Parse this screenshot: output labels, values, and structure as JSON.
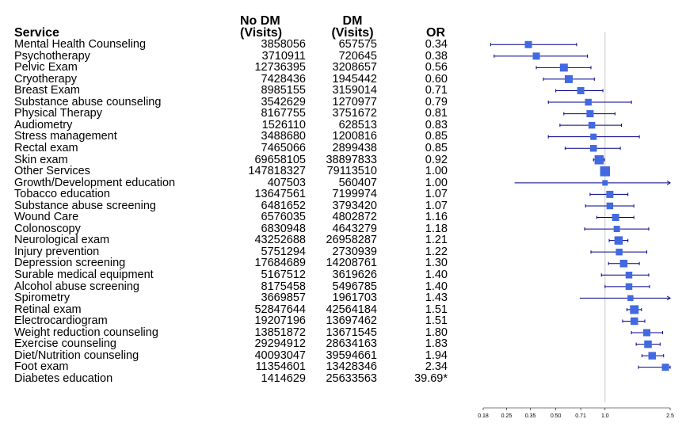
{
  "headers": {
    "service": "Service",
    "no_dm_line1": "No DM",
    "no_dm_line2": "(Visits)",
    "dm_line1": "DM",
    "dm_line2": "(Visits)",
    "or": "OR"
  },
  "colors": {
    "marker": "#4169E1",
    "ci_line": "#00008B",
    "ref_line": "#C8C8C8"
  },
  "chart_data": {
    "type": "forest",
    "x_scale": "log",
    "xlim": [
      0.18,
      2.5
    ],
    "x_ticks": [
      "0.18",
      "0.25",
      "0.35",
      "0.50",
      "0.71",
      "1.0",
      "2.5"
    ],
    "reference_value": 1.0,
    "rows": [
      {
        "service": "Mental Health Counseling",
        "no_dm": "3858056",
        "dm": "657575",
        "or_label": "0.34",
        "or": 0.34,
        "lo": 0.2,
        "hi": 0.67
      },
      {
        "service": "Psychotherapy",
        "no_dm": "3710911",
        "dm": "720645",
        "or_label": "0.38",
        "or": 0.38,
        "lo": 0.21,
        "hi": 0.78
      },
      {
        "service": "Pelvic Exam",
        "no_dm": "12736395",
        "dm": "3208657",
        "or_label": "0.56",
        "or": 0.56,
        "lo": 0.38,
        "hi": 0.82
      },
      {
        "service": "Cryotherapy",
        "no_dm": "7428436",
        "dm": "1945442",
        "or_label": "0.60",
        "or": 0.6,
        "lo": 0.42,
        "hi": 0.86
      },
      {
        "service": "Breast Exam",
        "no_dm": "8985155",
        "dm": "3159014",
        "or_label": "0.71",
        "or": 0.71,
        "lo": 0.5,
        "hi": 0.97
      },
      {
        "service": "Substance abuse counseling",
        "no_dm": "3542629",
        "dm": "1270977",
        "or_label": "0.79",
        "or": 0.79,
        "lo": 0.45,
        "hi": 1.45
      },
      {
        "service": "Physical Therapy",
        "no_dm": "8167755",
        "dm": "3751672",
        "or_label": "0.81",
        "or": 0.81,
        "lo": 0.56,
        "hi": 1.15
      },
      {
        "service": "Audiometry",
        "no_dm": "1526110",
        "dm": "628513",
        "or_label": "0.83",
        "or": 0.83,
        "lo": 0.53,
        "hi": 1.26
      },
      {
        "service": "Stress management",
        "no_dm": "3488680",
        "dm": "1200816",
        "or_label": "0.85",
        "or": 0.85,
        "lo": 0.45,
        "hi": 1.62
      },
      {
        "service": "Rectal exam",
        "no_dm": "7465066",
        "dm": "2899438",
        "or_label": "0.85",
        "or": 0.85,
        "lo": 0.57,
        "hi": 1.24
      },
      {
        "service": "Skin exam",
        "no_dm": "69658105",
        "dm": "38897833",
        "or_label": "0.92",
        "or": 0.92,
        "lo": 0.85,
        "hi": 0.99
      },
      {
        "service": "Other Services",
        "no_dm": "147818327",
        "dm": "79113510",
        "or_label": "1.00",
        "or": 1.0,
        "lo": 0.96,
        "hi": 1.05
      },
      {
        "service": "Growth/Development education",
        "no_dm": "407503",
        "dm": "560407",
        "or_label": "1.00",
        "or": 1.0,
        "lo": 0.28,
        "hi": 2.5,
        "arrow_right": true
      },
      {
        "service": "Tobacco education",
        "no_dm": "13647561",
        "dm": "7199974",
        "or_label": "1.07",
        "or": 1.07,
        "lo": 0.81,
        "hi": 1.38
      },
      {
        "service": "Substance abuse screening",
        "no_dm": "6481652",
        "dm": "3793420",
        "or_label": "1.07",
        "or": 1.07,
        "lo": 0.76,
        "hi": 1.5
      },
      {
        "service": "Wound Care",
        "no_dm": "6576035",
        "dm": "4802872",
        "or_label": "1.16",
        "or": 1.16,
        "lo": 0.89,
        "hi": 1.5
      },
      {
        "service": "Colonoscopy",
        "no_dm": "6830948",
        "dm": "4643279",
        "or_label": "1.18",
        "or": 1.18,
        "lo": 0.75,
        "hi": 1.85
      },
      {
        "service": "Neurological exam",
        "no_dm": "43252688",
        "dm": "26958287",
        "or_label": "1.21",
        "or": 1.21,
        "lo": 1.06,
        "hi": 1.38
      },
      {
        "service": "Injury prevention",
        "no_dm": "5751294",
        "dm": "2730939",
        "or_label": "1.22",
        "or": 1.22,
        "lo": 0.82,
        "hi": 1.8
      },
      {
        "service": "Depression screening",
        "no_dm": "17684689",
        "dm": "14208761",
        "or_label": "1.30",
        "or": 1.3,
        "lo": 1.05,
        "hi": 1.62
      },
      {
        "service": "Surable medical equipment",
        "no_dm": "5167512",
        "dm": "3619626",
        "or_label": "1.40",
        "or": 1.4,
        "lo": 0.95,
        "hi": 1.85
      },
      {
        "service": "Alcohol abuse screening",
        "no_dm": "8175458",
        "dm": "5496785",
        "or_label": "1.40",
        "or": 1.4,
        "lo": 1.0,
        "hi": 1.87
      },
      {
        "service": "Spirometry",
        "no_dm": "3669857",
        "dm": "1961703",
        "or_label": "1.43",
        "or": 1.43,
        "lo": 0.7,
        "hi": 2.5,
        "arrow_right": true
      },
      {
        "service": "Retinal exam",
        "no_dm": "52847644",
        "dm": "42564184",
        "or_label": "1.51",
        "or": 1.51,
        "lo": 1.36,
        "hi": 1.67
      },
      {
        "service": "Electrocardiogram",
        "no_dm": "19207196",
        "dm": "13697462",
        "or_label": "1.51",
        "or": 1.51,
        "lo": 1.28,
        "hi": 1.75
      },
      {
        "service": "Weight reduction counseling",
        "no_dm": "13851872",
        "dm": "13671545",
        "or_label": "1.80",
        "or": 1.8,
        "lo": 1.45,
        "hi": 2.25
      },
      {
        "service": "Exercise counseling",
        "no_dm": "29294912",
        "dm": "28634163",
        "or_label": "1.83",
        "or": 1.83,
        "lo": 1.55,
        "hi": 2.17
      },
      {
        "service": "Diet/Nutrition counseling",
        "no_dm": "40093047",
        "dm": "39594661",
        "or_label": "1.94",
        "or": 1.94,
        "lo": 1.68,
        "hi": 2.28
      },
      {
        "service": "Foot exam",
        "no_dm": "11354601",
        "dm": "13428346",
        "or_label": "2.34",
        "or": 2.34,
        "lo": 1.6,
        "hi": 2.5
      },
      {
        "service": "Diabetes education",
        "no_dm": "1414629",
        "dm": "25633563",
        "or_label": "39.69*",
        "or": 39.69,
        "lo": null,
        "hi": null,
        "hidden": true
      }
    ],
    "marker_weights": [
      1.0,
      1.0,
      1.2,
      1.2,
      1.0,
      0.9,
      1.0,
      0.9,
      0.8,
      0.9,
      1.5,
      1.7,
      0.6,
      1.0,
      0.9,
      1.0,
      0.8,
      1.3,
      0.9,
      1.1,
      0.9,
      0.9,
      0.7,
      1.4,
      1.1,
      1.0,
      1.1,
      1.1,
      1.0,
      0
    ]
  }
}
